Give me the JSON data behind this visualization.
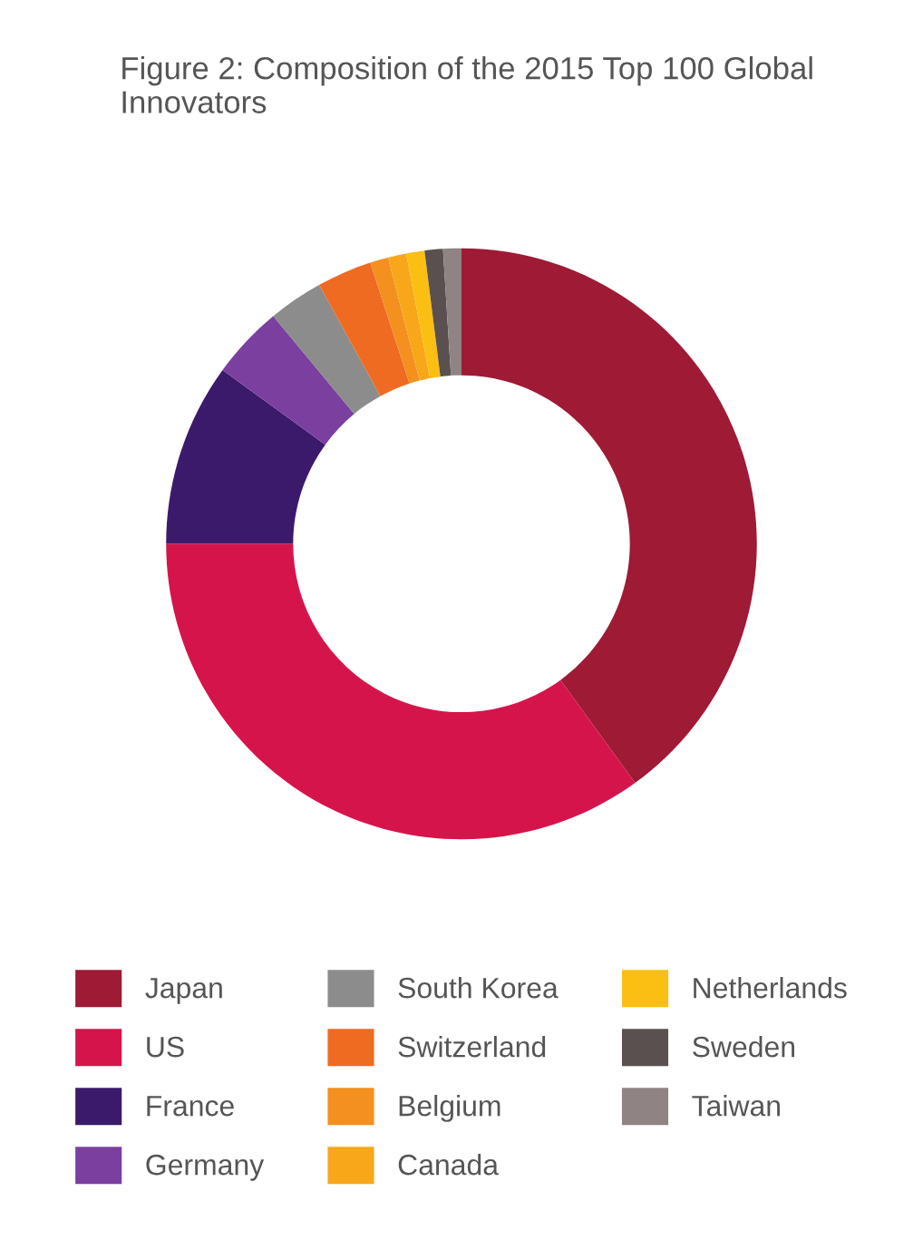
{
  "chart_data": {
    "type": "donut",
    "title": "Figure 2: Composition of the 2015 Top 100 Global Innovators",
    "categories": [
      "Japan",
      "US",
      "France",
      "Germany",
      "South Korea",
      "Switzerland",
      "Belgium",
      "Canada",
      "Netherlands",
      "Sweden",
      "Taiwan"
    ],
    "values": [
      40,
      35,
      10,
      4,
      3,
      3,
      1,
      1,
      1,
      1,
      1
    ],
    "colors": [
      "#9e1a35",
      "#d6144c",
      "#3b1a6b",
      "#7b3fa0",
      "#8c8c8c",
      "#ef6b22",
      "#f3901f",
      "#f8a71b",
      "#fbbf14",
      "#5a5050",
      "#8f8383"
    ],
    "legend": "bottom"
  }
}
